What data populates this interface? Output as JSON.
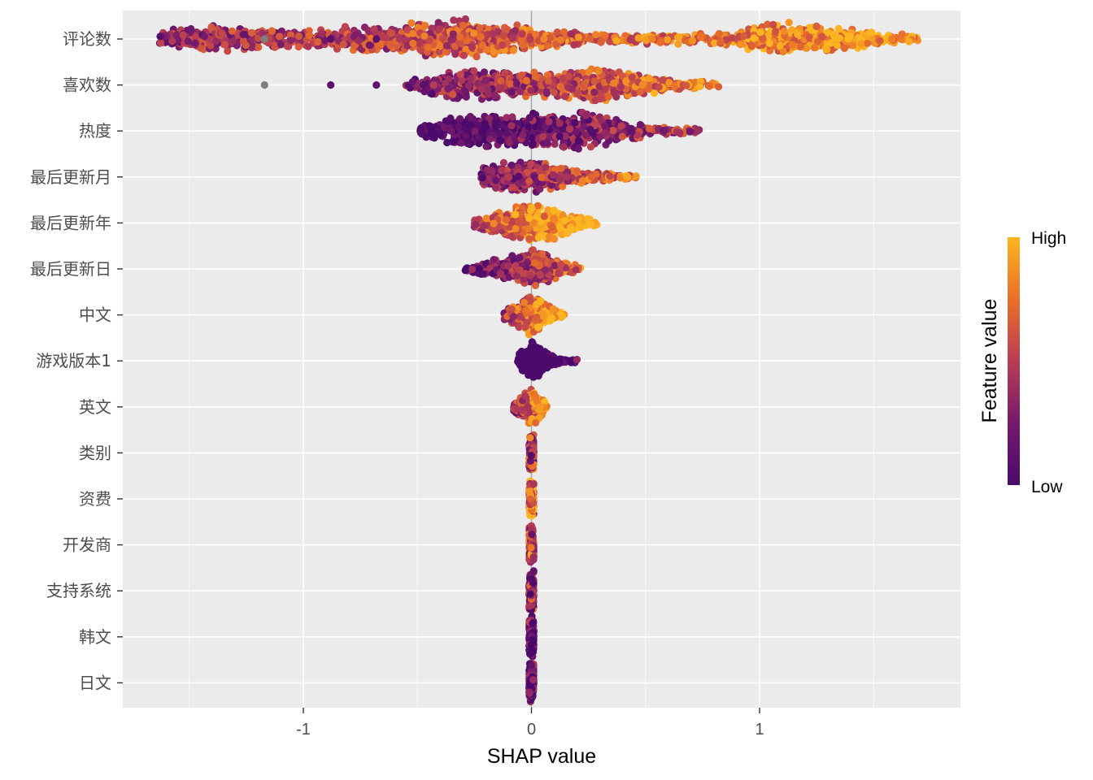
{
  "chart_data": {
    "type": "scatter",
    "subtype": "shap-beeswarm",
    "title": "",
    "xlabel": "SHAP value",
    "ylabel": "",
    "xlim": [
      -1.8,
      1.88
    ],
    "xticks": [
      -1,
      0,
      1
    ],
    "xtick_labels": [
      "-1",
      "0",
      "1"
    ],
    "grid": true,
    "zero_line": 0,
    "legend": {
      "title": "Feature value",
      "high_label": "High",
      "low_label": "Low",
      "position": "right",
      "colors": [
        "#fcb520",
        "#e96f2a",
        "#b83d54",
        "#741a6d",
        "#4b0a6b"
      ]
    },
    "missing_color": "#7f7f7f",
    "features": [
      {
        "name": "评论数",
        "min": -1.63,
        "max": 1.7,
        "spread": 0.25,
        "density": [
          [
            -1.6,
            0.45
          ],
          [
            -1.4,
            0.7
          ],
          [
            -1.0,
            0.45
          ],
          [
            -0.5,
            0.85
          ],
          [
            -0.3,
            1.0
          ],
          [
            0.0,
            0.6
          ],
          [
            0.3,
            0.2
          ],
          [
            0.8,
            0.3
          ],
          [
            1.1,
            0.9
          ],
          [
            1.3,
            0.7
          ],
          [
            1.5,
            0.35
          ],
          [
            1.7,
            0.2
          ]
        ],
        "color_shift": 0.15,
        "outliers": [
          {
            "x": -1.17,
            "t": -1
          },
          {
            "x": -0.88,
            "t": 0.1
          },
          {
            "x": -0.68,
            "t": 0.1
          },
          {
            "x": 1.58,
            "t": 0.8
          }
        ]
      },
      {
        "name": "喜欢数",
        "min": -0.55,
        "max": 0.83,
        "spread": 0.3,
        "density": [
          [
            -0.55,
            0.2
          ],
          [
            -0.3,
            0.85
          ],
          [
            -0.1,
            0.7
          ],
          [
            0.1,
            0.6
          ],
          [
            0.3,
            0.9
          ],
          [
            0.55,
            0.4
          ],
          [
            0.83,
            0.15
          ]
        ],
        "color_shift": 0.05,
        "outliers": [
          {
            "x": -1.17,
            "t": -1
          },
          {
            "x": -0.88,
            "t": 0.1
          },
          {
            "x": -0.68,
            "t": 0.1
          }
        ]
      },
      {
        "name": "热度",
        "min": -0.5,
        "max": 0.76,
        "spread": 0.28,
        "density": [
          [
            -0.5,
            0.25
          ],
          [
            -0.3,
            0.9
          ],
          [
            -0.1,
            0.8
          ],
          [
            0.2,
            1.0
          ],
          [
            0.4,
            0.5
          ],
          [
            0.6,
            0.2
          ],
          [
            0.76,
            0.1
          ]
        ],
        "color_shift": -0.25,
        "outliers": []
      },
      {
        "name": "最后更新月",
        "min": -0.22,
        "max": 0.47,
        "spread": 0.12,
        "density": [
          [
            -0.22,
            0.5
          ],
          [
            -0.05,
            0.9
          ],
          [
            0.05,
            0.7
          ],
          [
            0.2,
            0.35
          ],
          [
            0.47,
            0.1
          ]
        ],
        "color_shift": 0.0,
        "outliers": []
      },
      {
        "name": "最后更新年",
        "min": -0.26,
        "max": 0.29,
        "spread": 0.1,
        "density": [
          [
            -0.26,
            0.2
          ],
          [
            -0.05,
            0.9
          ],
          [
            0.05,
            1.0
          ],
          [
            0.2,
            0.4
          ],
          [
            0.29,
            0.15
          ]
        ],
        "color_shift": 0.35,
        "outliers": []
      },
      {
        "name": "最后更新日",
        "min": -0.29,
        "max": 0.22,
        "spread": 0.1,
        "density": [
          [
            -0.29,
            0.15
          ],
          [
            -0.1,
            0.6
          ],
          [
            0.0,
            0.95
          ],
          [
            0.12,
            0.5
          ],
          [
            0.22,
            0.1
          ]
        ],
        "color_shift": -0.1,
        "outliers": []
      },
      {
        "name": "中文",
        "min": -0.12,
        "max": 0.15,
        "spread": 0.05,
        "density": [
          [
            -0.12,
            0.3
          ],
          [
            0.0,
            1.0
          ],
          [
            0.06,
            0.6
          ],
          [
            0.15,
            0.1
          ]
        ],
        "color_shift": 0.3,
        "outliers": []
      },
      {
        "name": "游戏版本1",
        "min": -0.06,
        "max": 0.2,
        "spread": 0.02,
        "density": [
          [
            -0.06,
            0.3
          ],
          [
            0.0,
            1.0
          ],
          [
            0.1,
            0.2
          ],
          [
            0.2,
            0.1
          ]
        ],
        "color_shift": -0.7,
        "outliers": []
      },
      {
        "name": "英文",
        "min": -0.08,
        "max": 0.07,
        "spread": 0.02,
        "density": [
          [
            -0.08,
            0.2
          ],
          [
            0.0,
            1.0
          ],
          [
            0.07,
            0.2
          ]
        ],
        "color_shift": 0.2,
        "outliers": []
      },
      {
        "name": "类别",
        "min": -0.01,
        "max": 0.01,
        "spread": 0.005,
        "density": [
          [
            0.0,
            1.0
          ]
        ],
        "color_shift": 0.0,
        "outliers": []
      },
      {
        "name": "资费",
        "min": -0.01,
        "max": 0.01,
        "spread": 0.005,
        "density": [
          [
            0.0,
            1.0
          ]
        ],
        "color_shift": 0.6,
        "outliers": []
      },
      {
        "name": "开发商",
        "min": -0.01,
        "max": 0.01,
        "spread": 0.005,
        "density": [
          [
            0.0,
            1.0
          ]
        ],
        "color_shift": 0.0,
        "outliers": []
      },
      {
        "name": "支持系统",
        "min": -0.01,
        "max": 0.01,
        "spread": 0.005,
        "density": [
          [
            0.0,
            1.0
          ]
        ],
        "color_shift": -0.3,
        "outliers": []
      },
      {
        "name": "韩文",
        "min": -0.01,
        "max": 0.01,
        "spread": 0.005,
        "density": [
          [
            0.0,
            1.0
          ]
        ],
        "color_shift": -0.8,
        "outliers": []
      },
      {
        "name": "日文",
        "min": -0.01,
        "max": 0.01,
        "spread": 0.005,
        "density": [
          [
            0.0,
            1.0
          ]
        ],
        "color_shift": -0.9,
        "outliers": []
      }
    ]
  }
}
